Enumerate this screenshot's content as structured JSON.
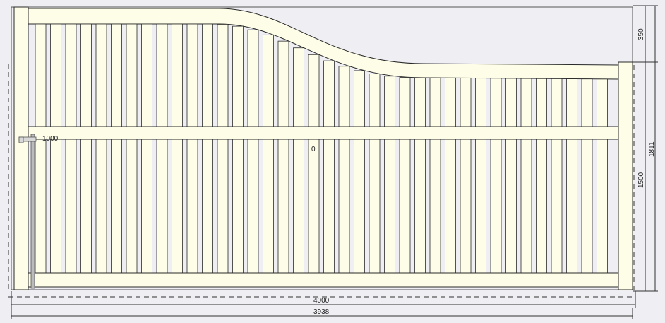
{
  "dimensions": {
    "arch_height": "350",
    "total_height": "1811",
    "post_height": "1500",
    "overall_width": "4000",
    "gate_width": "3938",
    "latch_height": "1000",
    "origin_mark": "0"
  },
  "colors": {
    "background": "#eeeef3",
    "timber_fill": "#fdfde8",
    "outline": "#2a2a2a",
    "dimension_line": "#333333"
  }
}
